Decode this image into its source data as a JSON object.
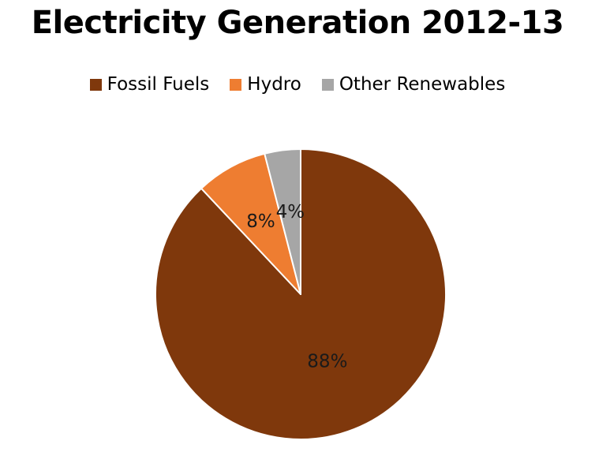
{
  "chart_data": {
    "type": "pie",
    "title": "Electricity Generation 2012-13",
    "legend_position": "top",
    "start_angle_deg": 0,
    "direction": "clockwise",
    "categories": [
      "Fossil Fuels",
      "Hydro",
      "Other Renewables"
    ],
    "values": [
      88,
      8,
      4
    ],
    "data_labels": [
      "88%",
      "8%",
      "4%"
    ],
    "colors": [
      "#7f380c",
      "#ee7d31",
      "#a6a6a6"
    ]
  }
}
